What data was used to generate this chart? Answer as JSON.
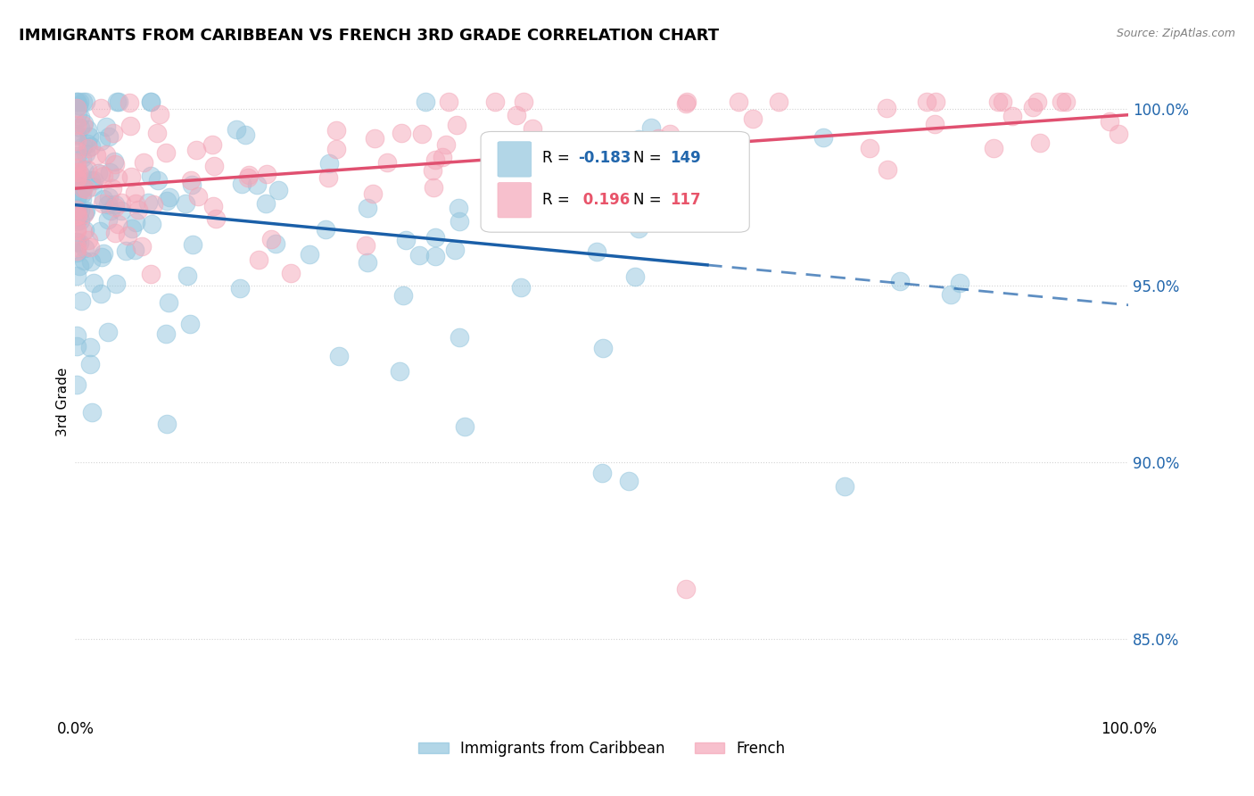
{
  "title": "IMMIGRANTS FROM CARIBBEAN VS FRENCH 3RD GRADE CORRELATION CHART",
  "source_text": "Source: ZipAtlas.com",
  "ylabel": "3rd Grade",
  "xlim": [
    0.0,
    1.0
  ],
  "ylim": [
    0.828,
    1.006
  ],
  "x_tick_labels": [
    "0.0%",
    "100.0%"
  ],
  "y_tick_labels": [
    "85.0%",
    "90.0%",
    "95.0%",
    "100.0%"
  ],
  "y_ticks": [
    0.85,
    0.9,
    0.95,
    1.0
  ],
  "legend_label1": "Immigrants from Caribbean",
  "legend_label2": "French",
  "R1": -0.183,
  "N1": 149,
  "R2": 0.196,
  "N2": 117,
  "color_blue": "#92c5de",
  "color_pink": "#f4a6b8",
  "color_blue_line": "#1a5fa8",
  "color_pink_line": "#e05070",
  "color_blue_text": "#2166ac",
  "color_pink_text": "#e8546a"
}
